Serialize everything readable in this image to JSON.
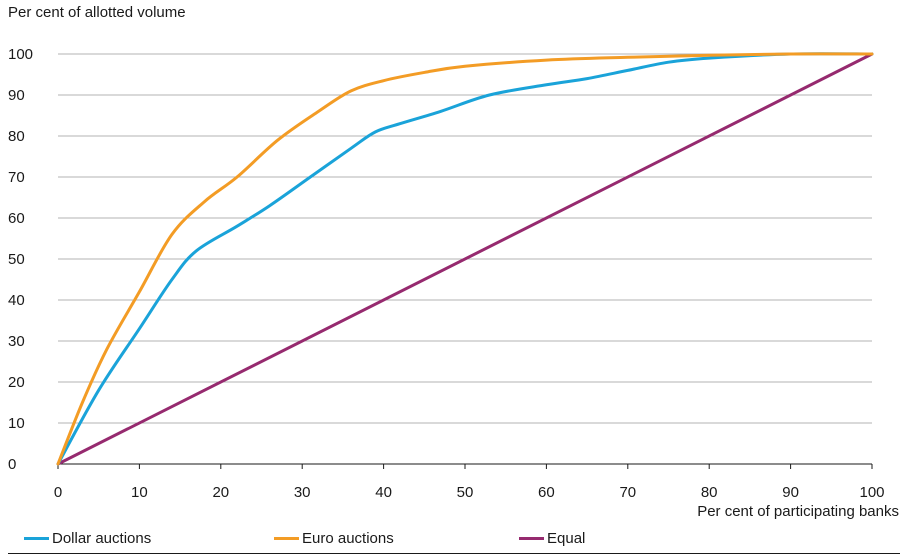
{
  "chart_data": {
    "type": "line",
    "title": "",
    "ylabel": "Per cent of allotted volume",
    "xlabel": "Per cent of participating banks",
    "xlim": [
      0,
      100
    ],
    "ylim": [
      0,
      100
    ],
    "xticks": [
      0,
      10,
      20,
      30,
      40,
      50,
      60,
      70,
      80,
      90,
      100
    ],
    "yticks": [
      0,
      10,
      20,
      30,
      40,
      50,
      60,
      70,
      80,
      90,
      100
    ],
    "grid": "horizontal",
    "legend_position": "bottom",
    "series": [
      {
        "name": "Dollar auctions",
        "color": "#1aa3d9",
        "points": [
          [
            0,
            0
          ],
          [
            5,
            18
          ],
          [
            10,
            33
          ],
          [
            14,
            45
          ],
          [
            17,
            52
          ],
          [
            22,
            58
          ],
          [
            26,
            63
          ],
          [
            31,
            70
          ],
          [
            36,
            77
          ],
          [
            39,
            81
          ],
          [
            42,
            83
          ],
          [
            47,
            86
          ],
          [
            53,
            90
          ],
          [
            60,
            92.5
          ],
          [
            65,
            94
          ],
          [
            70,
            96
          ],
          [
            75,
            98
          ],
          [
            80,
            99
          ],
          [
            90,
            100
          ],
          [
            100,
            100
          ]
        ]
      },
      {
        "name": "Euro auctions",
        "color": "#f39c25",
        "points": [
          [
            0,
            0
          ],
          [
            3,
            15
          ],
          [
            6,
            28
          ],
          [
            10,
            42
          ],
          [
            14,
            56
          ],
          [
            18,
            64
          ],
          [
            22,
            70
          ],
          [
            27,
            79
          ],
          [
            32,
            86
          ],
          [
            36,
            91
          ],
          [
            40,
            93.5
          ],
          [
            45,
            95.5
          ],
          [
            50,
            97
          ],
          [
            60,
            98.5
          ],
          [
            70,
            99.2
          ],
          [
            80,
            99.7
          ],
          [
            90,
            100
          ],
          [
            100,
            100
          ]
        ]
      },
      {
        "name": "Equal",
        "color": "#962a6f",
        "points": [
          [
            0,
            0
          ],
          [
            100,
            100
          ]
        ]
      }
    ]
  }
}
